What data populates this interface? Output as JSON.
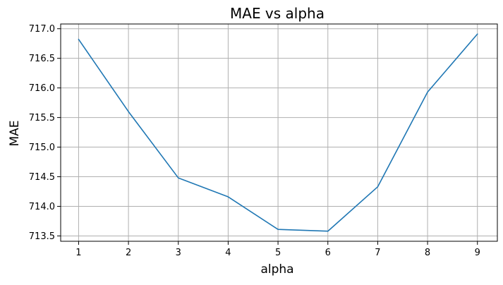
{
  "chart_data": {
    "type": "line",
    "title": "MAE vs alpha",
    "xlabel": "alpha",
    "ylabel": "MAE",
    "x": [
      1,
      2,
      3,
      4,
      5,
      6,
      7,
      8,
      9
    ],
    "series": [
      {
        "name": "MAE",
        "color": "#1f77b4",
        "values": [
          716.82,
          715.6,
          714.48,
          714.16,
          713.61,
          713.58,
          714.33,
          715.93,
          716.91
        ]
      }
    ],
    "xticks": [
      "1",
      "2",
      "3",
      "4",
      "5",
      "6",
      "7",
      "8",
      "9"
    ],
    "yticks": [
      "713.5",
      "714.0",
      "714.5",
      "715.0",
      "715.5",
      "716.0",
      "716.5",
      "717.0"
    ],
    "xlim": [
      0.64,
      9.4
    ],
    "ylim": [
      713.41,
      717.08
    ],
    "grid": true
  }
}
